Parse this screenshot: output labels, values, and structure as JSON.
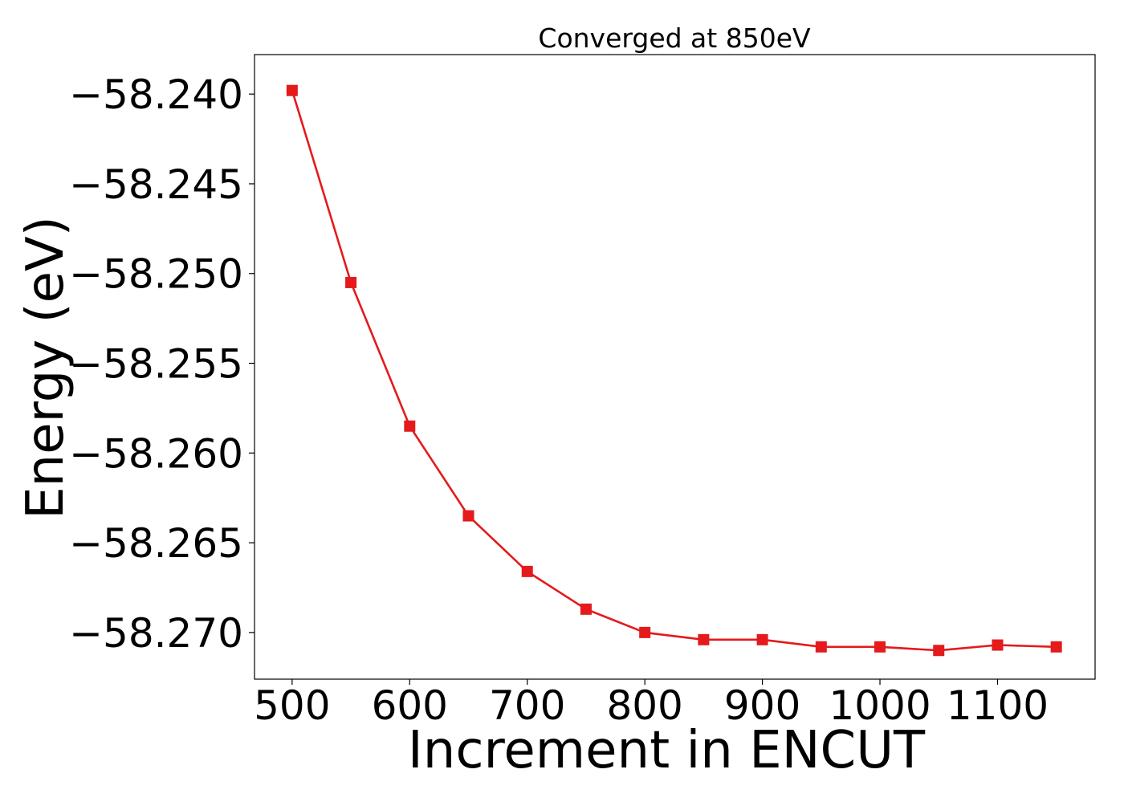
{
  "chart_data": {
    "type": "line",
    "title": "Converged at 850eV",
    "xlabel": "Increment in ENCUT",
    "ylabel": "Energy (eV)",
    "x": [
      500,
      550,
      600,
      650,
      700,
      750,
      800,
      850,
      900,
      950,
      1000,
      1050,
      1100,
      1150
    ],
    "series": [
      {
        "values": [
          -58.2398,
          -58.2505,
          -58.2585,
          -58.2635,
          -58.2666,
          -58.2687,
          -58.27,
          -58.2704,
          -58.2704,
          -58.2708,
          -58.2708,
          -58.271,
          -58.2707,
          -58.2708
        ],
        "color": "#e41a1c",
        "marker": "square"
      }
    ],
    "xlim": [
      468,
      1183
    ],
    "ylim": [
      -58.2726,
      -58.2378
    ],
    "xticks": [
      500,
      600,
      700,
      800,
      900,
      1000,
      1100
    ],
    "xtick_labels": [
      "500",
      "600",
      "700",
      "800",
      "900",
      "1000",
      "1100"
    ],
    "yticks": [
      -58.24,
      -58.245,
      -58.25,
      -58.255,
      -58.26,
      -58.265,
      -58.27
    ],
    "ytick_labels": [
      "−58.240",
      "−58.245",
      "−58.250",
      "−58.255",
      "−58.260",
      "−58.265",
      "−58.270"
    ],
    "grid": false,
    "legend": "none"
  }
}
